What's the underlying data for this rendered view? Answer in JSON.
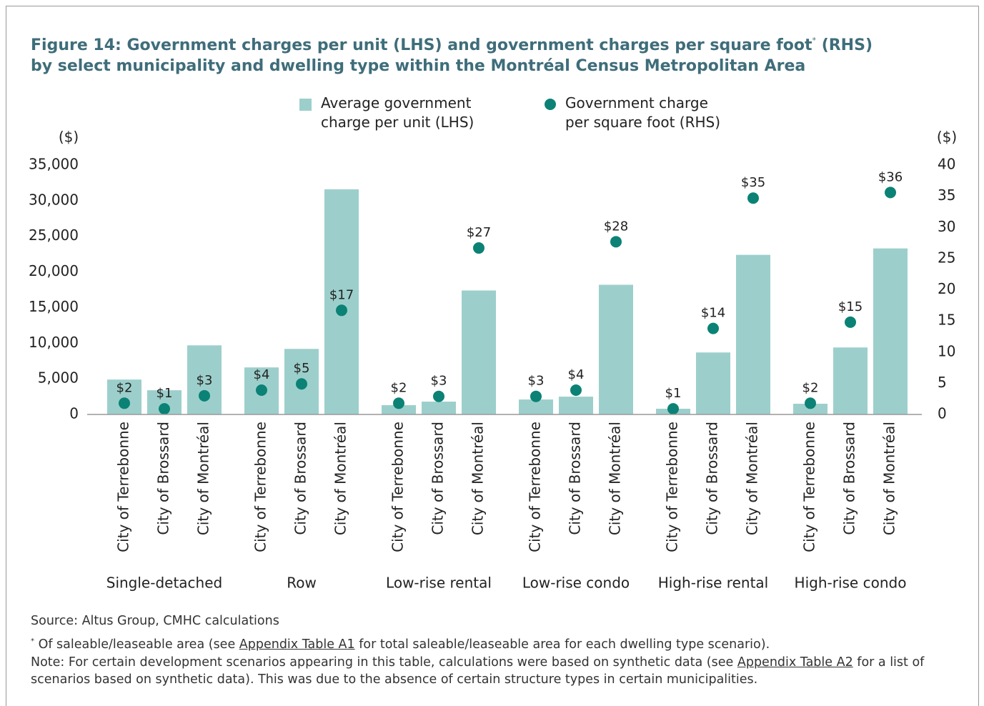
{
  "chart_data": {
    "type": "bar_dot",
    "title": [
      "Figure 14: Government charges per unit (LHS) and government charges per square foot",
      "*",
      " (RHS)",
      "by select municipality and dwelling type within the Montréal Census Metropolitan Area"
    ],
    "ylabel": "($)",
    "y2label": "($)",
    "groups": [
      "Single-detached",
      "Row",
      "Low-rise rental",
      "Low-rise condo",
      "High-rise rental",
      "High-rise condo"
    ],
    "categories": [
      "City of Terrebonne",
      "City of Brossard",
      "City of Montréal",
      "City of Terrebonne",
      "City of Brossard",
      "City of Montréal",
      "City of Terrebonne",
      "City of Brossard",
      "City of Montréal",
      "City of Terrebonne",
      "City of Brossard",
      "City of Montréal",
      "City of Terrebonne",
      "City of Brossard",
      "City of Montréal",
      "City of Terrebonne",
      "City of Brossard",
      "City of Montréal"
    ],
    "series": [
      {
        "name": "Average government charge per unit (LHS)",
        "color": "#9ccfcb",
        "mark": "bar",
        "values": [
          4900,
          3400,
          9700,
          6600,
          9200,
          31600,
          1300,
          1800,
          17400,
          2100,
          2500,
          18200,
          800,
          8700,
          22400,
          1500,
          9400,
          23300
        ]
      },
      {
        "name": "Government charge per square foot (RHS)",
        "color": "#0b8275",
        "mark": "dot",
        "axis": "y2",
        "values": [
          1.8,
          0.9,
          3.0,
          3.9,
          4.9,
          16.7,
          1.8,
          2.9,
          26.7,
          2.9,
          3.9,
          27.7,
          0.9,
          13.8,
          34.7,
          1.8,
          14.8,
          35.6
        ],
        "value_labels": [
          "$2",
          "$1",
          "$3",
          "$4",
          "$5",
          "$17",
          "$2",
          "$3",
          "$27",
          "$3",
          "$4",
          "$28",
          "$1",
          "$14",
          "$35",
          "$2",
          "$15",
          "$36"
        ]
      }
    ],
    "ylim": [
      0,
      35000
    ],
    "yticks": [
      0,
      {
        "value": 5000,
        "label": "5,000"
      },
      {
        "value": 10000,
        "label": "10,000"
      },
      {
        "value": 15000,
        "label": "15,000"
      },
      {
        "value": 20000,
        "label": "20,000"
      },
      {
        "value": 25000,
        "label": "25,000"
      },
      {
        "value": 30000,
        "label": "30,000"
      },
      {
        "value": 35000,
        "label": "35,000"
      }
    ],
    "y2lim": [
      0,
      40
    ],
    "y2ticks": [
      0,
      5,
      10,
      15,
      20,
      25,
      30,
      35,
      40
    ],
    "grid": false,
    "source": "Source: Altus Group, CMHC calculations",
    "footnote": {
      "marker": "*",
      "before": " Of saleable/leaseable area (see ",
      "link": "Appendix Table A1",
      "after": " for total saleable/leaseable area for each dwelling type scenario)."
    },
    "note": {
      "before": "Note: For certain development scenarios appearing in this table, calculations were based on synthetic data (see ",
      "link": "Appendix Table A2",
      "after": " for a list of scenarios based on synthetic data). This was due to the absence of certain structure types in certain municipalities."
    }
  }
}
